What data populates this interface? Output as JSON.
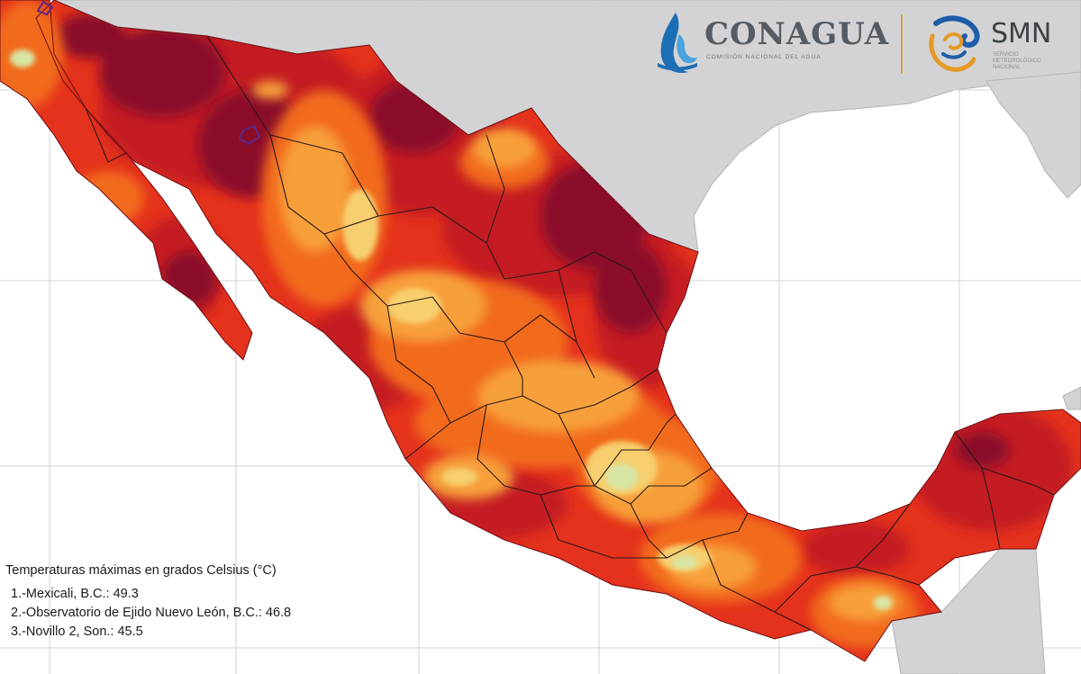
{
  "logos": {
    "conagua": {
      "name": "CONAGUA",
      "subtitle": "COMISIÓN NACIONAL DEL AGUA"
    },
    "smn": {
      "name": "SMN",
      "subtitle": "SERVICIO METEOROLÓGICO NACIONAL"
    }
  },
  "legend": {
    "title": "Temperaturas máximas en grados Celsius (°C)",
    "items": [
      {
        "text": "1.-Mexicali, B.C.: 49.3"
      },
      {
        "text": "2.-Observatorio de Ejido Nuevo León, B.C.: 46.8"
      },
      {
        "text": "3.-Novillo 2, Son.: 45.5"
      }
    ]
  },
  "colors": {
    "ocean": "#ffffff",
    "land_outside": "#d3d3d5",
    "grid": "#cfd3d8",
    "temp_extreme": "#8b0f2c",
    "temp_very_high": "#c41a24",
    "temp_high": "#e4321c",
    "temp_warm": "#f26a1e",
    "temp_mild": "#f7a03b",
    "temp_cool": "#f7cf6e",
    "temp_coolest": "#d8e6a4",
    "borders": "#2a1a1a",
    "station_markers": "#5a2a8a",
    "conagua_blue": "#1d6fb5",
    "smn_orange": "#e59a25",
    "smn_blue": "#1f5da8"
  }
}
